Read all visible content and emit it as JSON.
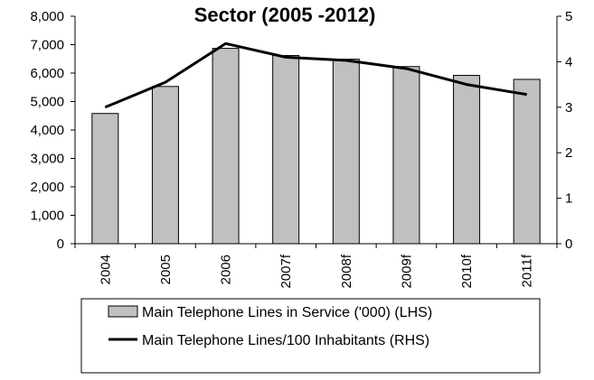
{
  "chart_data": {
    "type": "bar",
    "title": "Sector (2005 -2012)",
    "categories": [
      "2004",
      "2005",
      "2006",
      "2007f",
      "2008f",
      "2009f",
      "2010f",
      "2011f"
    ],
    "series": [
      {
        "name": "Main Telephone Lines in Service ('000) (LHS)",
        "type": "bar",
        "axis": "left",
        "values": [
          4580,
          5530,
          6870,
          6620,
          6490,
          6230,
          5920,
          5780
        ],
        "color": "#c0c0c0"
      },
      {
        "name": "Main Telephone Lines/100 Inhabitants (RHS)",
        "type": "line",
        "axis": "right",
        "values": [
          3.0,
          3.55,
          4.4,
          4.1,
          4.03,
          3.85,
          3.5,
          3.28
        ],
        "color": "#000000"
      }
    ],
    "y_left": {
      "ylim": [
        0,
        8000
      ],
      "ticks": [
        "0",
        "1,000",
        "2,000",
        "3,000",
        "4,000",
        "5,000",
        "6,000",
        "7,000",
        "8,000"
      ]
    },
    "y_right": {
      "ylim": [
        0,
        5
      ],
      "ticks": [
        "0",
        "1",
        "2",
        "3",
        "4",
        "5"
      ]
    },
    "grid": false,
    "legend_position": "bottom"
  }
}
